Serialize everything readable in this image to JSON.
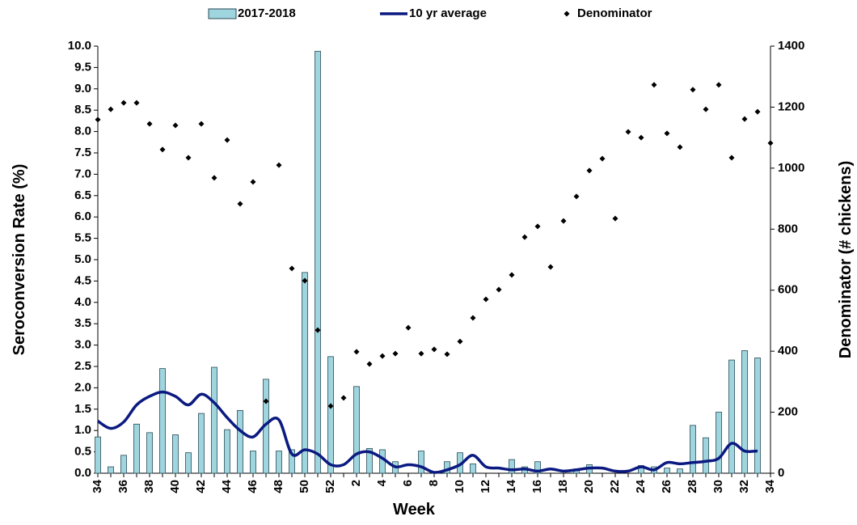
{
  "chart_data": {
    "type": "bar_line_scatter",
    "x_label": "Week",
    "y_label": "Seroconversion Rate (%)",
    "y2_label": "Denominator (# chickens)",
    "categories": [
      "34",
      null,
      "36",
      null,
      "38",
      null,
      "40",
      null,
      "42",
      null,
      "44",
      null,
      "46",
      null,
      "48",
      null,
      "50",
      null,
      "52",
      null,
      "2",
      null,
      "4",
      null,
      "6",
      null,
      "8",
      null,
      "10",
      null,
      "12",
      null,
      "14",
      null,
      "16",
      null,
      "18",
      null,
      "20",
      null,
      "22",
      null,
      "24",
      null,
      "26",
      null,
      "28",
      null,
      "30",
      null,
      "32",
      null,
      "34"
    ],
    "series": [
      {
        "name": "2017-2018",
        "kind": "bar",
        "color": "#9fd5df",
        "values": [
          0.85,
          0.15,
          0.42,
          1.15,
          0.95,
          2.45,
          0.9,
          0.48,
          1.4,
          2.48,
          1.02,
          1.47,
          0.52,
          2.2,
          0.52,
          0.55,
          4.7,
          9.88,
          2.73,
          0,
          2.03,
          0.58,
          0.55,
          0.27,
          0,
          0.52,
          0,
          0.27,
          0.48,
          0.22,
          0,
          0,
          0.32,
          0.15,
          0.27,
          0,
          0,
          0.1,
          0.2,
          0,
          0,
          0,
          0.18,
          0.15,
          0.12,
          0.1,
          1.12,
          0.83,
          1.43,
          2.65,
          2.87,
          2.7,
          0
        ]
      },
      {
        "name": "10 yr average",
        "kind": "line",
        "color": "#0b1a80",
        "values": [
          1.22,
          1.05,
          1.2,
          1.6,
          1.8,
          1.9,
          1.8,
          1.6,
          1.85,
          1.65,
          1.3,
          1.0,
          0.85,
          1.15,
          1.25,
          0.45,
          0.55,
          0.45,
          0.2,
          0.2,
          0.45,
          0.5,
          0.35,
          0.15,
          0.2,
          0.15,
          0.02,
          0.08,
          0.2,
          0.42,
          0.15,
          0.12,
          0.08,
          0.1,
          0.05,
          0.1,
          0.05,
          0.08,
          0.12,
          0.12,
          0.05,
          0.05,
          0.15,
          0.08,
          0.25,
          0.22,
          0.25,
          0.28,
          0.35,
          0.7,
          0.52,
          0.52,
          null
        ]
      },
      {
        "name": "Denominator",
        "kind": "scatter",
        "axis": "y2",
        "color": "#000000",
        "values": [
          1159,
          1193,
          1214,
          1214,
          1145,
          1061,
          1140,
          1034,
          1145,
          968,
          1092,
          883,
          955,
          236,
          1010,
          671,
          631,
          469,
          220,
          247,
          398,
          358,
          384,
          392,
          477,
          392,
          406,
          390,
          432,
          509,
          570,
          602,
          650,
          774,
          809,
          676,
          827,
          907,
          992,
          1031,
          835,
          1119,
          1100,
          1273,
          1114,
          1069,
          1257,
          1193,
          1273,
          1034,
          1161,
          1185,
          1082
        ]
      }
    ],
    "ylim": [
      0,
      10
    ],
    "yticks": [
      {
        "value": 0,
        "label": "0.0"
      },
      {
        "value": 0.5,
        "label": "0.5"
      },
      {
        "value": 1,
        "label": "1.0"
      },
      {
        "value": 1.5,
        "label": "1.5"
      },
      {
        "value": 2,
        "label": "2.0"
      },
      {
        "value": 2.5,
        "label": "2.5"
      },
      {
        "value": 3,
        "label": "3.0"
      },
      {
        "value": 3.5,
        "label": "3.5"
      },
      {
        "value": 4,
        "label": "4.0"
      },
      {
        "value": 4.5,
        "label": "4.5"
      },
      {
        "value": 5,
        "label": "5.0"
      },
      {
        "value": 5.5,
        "label": "5.5"
      },
      {
        "value": 6,
        "label": "6.0"
      },
      {
        "value": 6.5,
        "label": "6.5"
      },
      {
        "value": 7,
        "label": "7.0"
      },
      {
        "value": 7.5,
        "label": "7.5"
      },
      {
        "value": 8,
        "label": "8.0"
      },
      {
        "value": 8.5,
        "label": "8.5"
      },
      {
        "value": 9,
        "label": "9.0"
      },
      {
        "value": 9.5,
        "label": "9.5"
      },
      {
        "value": 10,
        "label": "10.0"
      }
    ],
    "y2lim": [
      0,
      1400
    ],
    "y2ticks": [
      0,
      200,
      400,
      600,
      800,
      1000,
      1200,
      1400
    ],
    "legend": "top"
  }
}
